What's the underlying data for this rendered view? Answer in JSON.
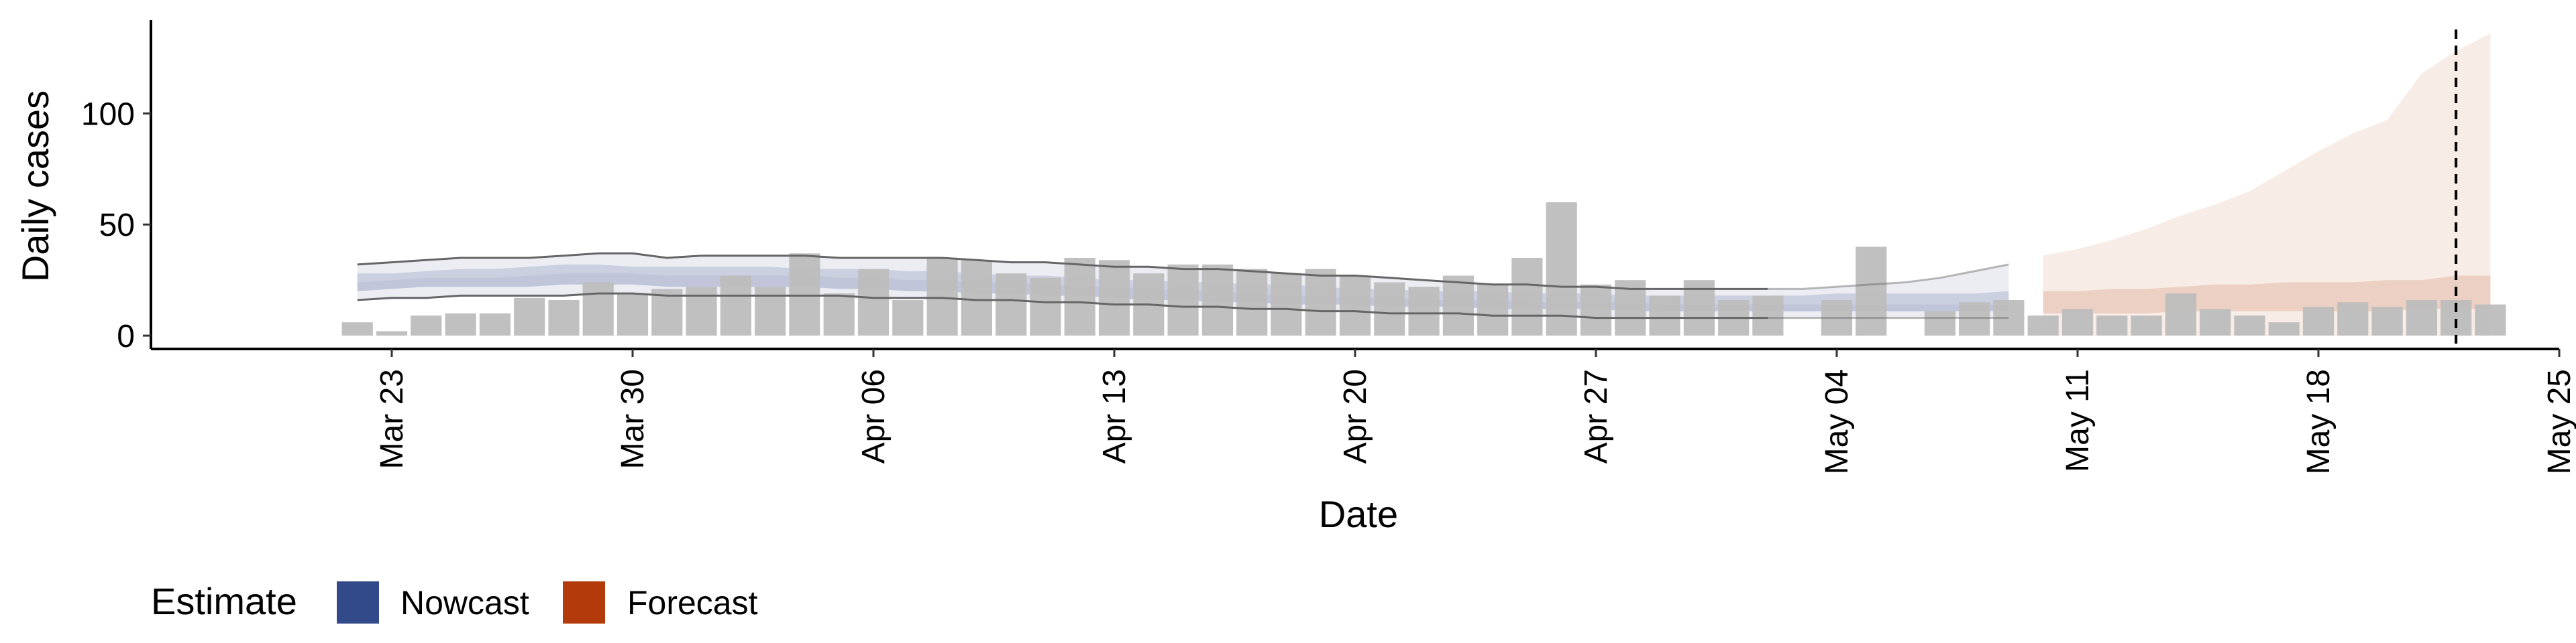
{
  "chart_data": {
    "type": "bar",
    "xlabel": "Date",
    "ylabel": "Daily cases",
    "xlim": [
      "2020-03-16",
      "2020-05-25"
    ],
    "ylim": [
      -6,
      142
    ],
    "x_ticks": [
      {
        "date": "2020-03-23",
        "label": "Mar 23"
      },
      {
        "date": "2020-03-30",
        "label": "Mar 30"
      },
      {
        "date": "2020-04-06",
        "label": "Apr 06"
      },
      {
        "date": "2020-04-13",
        "label": "Apr 13"
      },
      {
        "date": "2020-04-20",
        "label": "Apr 20"
      },
      {
        "date": "2020-04-27",
        "label": "Apr 27"
      },
      {
        "date": "2020-05-04",
        "label": "May 04"
      },
      {
        "date": "2020-05-11",
        "label": "May 11"
      },
      {
        "date": "2020-05-18",
        "label": "May 18"
      },
      {
        "date": "2020-05-25",
        "label": "May 25"
      }
    ],
    "y_ticks": [
      {
        "value": 0,
        "label": "0"
      },
      {
        "value": 50,
        "label": "50"
      },
      {
        "value": 100,
        "label": "100"
      }
    ],
    "reported_cases": {
      "start_date": "2020-03-22",
      "values": [
        6,
        2,
        9,
        10,
        10,
        17,
        16,
        24,
        19,
        21,
        22,
        27,
        22,
        37,
        19,
        30,
        16,
        35,
        34,
        28,
        26,
        35,
        34,
        28,
        32,
        32,
        30,
        28,
        30,
        27,
        24,
        22,
        27,
        23,
        35,
        60,
        23,
        25,
        18,
        25,
        16,
        18,
        0,
        16,
        40,
        0,
        11,
        15,
        16,
        9,
        12,
        9,
        9,
        19,
        12,
        9,
        6,
        13,
        15,
        13,
        16,
        16,
        14
      ]
    },
    "nowcast": {
      "start_date": "2020-03-22",
      "median": [
        24,
        25,
        26,
        26,
        26,
        27,
        28,
        28,
        28,
        27,
        27,
        27,
        27,
        27,
        26,
        26,
        25,
        25,
        24,
        24,
        23,
        22,
        22,
        21,
        20,
        20,
        19,
        18,
        18,
        17,
        17,
        16,
        16,
        16,
        15,
        15,
        15,
        15,
        14,
        14,
        14,
        14,
        14,
        14,
        14,
        14,
        14,
        14,
        14
      ],
      "lower50": [
        20,
        21,
        22,
        22,
        22,
        22,
        23,
        23,
        23,
        22,
        22,
        22,
        22,
        22,
        21,
        21,
        20,
        20,
        19,
        19,
        18,
        18,
        17,
        16,
        16,
        15,
        15,
        14,
        14,
        14,
        13,
        13,
        13,
        12,
        12,
        12,
        12,
        11,
        11,
        11,
        11,
        11,
        11,
        11,
        11,
        11,
        11,
        11,
        11
      ],
      "upper50": [
        28,
        28,
        29,
        30,
        30,
        31,
        32,
        32,
        31,
        31,
        31,
        31,
        31,
        30,
        30,
        30,
        29,
        29,
        28,
        27,
        27,
        26,
        25,
        25,
        24,
        24,
        23,
        23,
        22,
        21,
        21,
        20,
        20,
        20,
        19,
        19,
        19,
        18,
        18,
        18,
        18,
        18,
        18,
        19,
        19,
        19,
        19,
        19,
        20
      ],
      "lower90": [
        16,
        17,
        17,
        18,
        18,
        18,
        18,
        19,
        19,
        18,
        18,
        18,
        18,
        18,
        18,
        17,
        17,
        17,
        16,
        16,
        15,
        15,
        14,
        14,
        13,
        13,
        12,
        12,
        11,
        11,
        10,
        10,
        10,
        9,
        9,
        9,
        8,
        8,
        8,
        8,
        8,
        8,
        8,
        8,
        8,
        8,
        8,
        8,
        8
      ],
      "upper90": [
        32,
        33,
        34,
        35,
        35,
        35,
        36,
        37,
        37,
        35,
        36,
        36,
        36,
        36,
        35,
        35,
        35,
        35,
        34,
        33,
        33,
        32,
        31,
        31,
        30,
        30,
        29,
        28,
        27,
        27,
        26,
        25,
        24,
        23,
        23,
        22,
        22,
        21,
        21,
        21,
        21,
        21,
        21,
        22,
        23,
        24,
        26,
        29,
        32
      ]
    },
    "forecast": {
      "start_date": "2020-05-10",
      "lower50": [
        10,
        10,
        10,
        10,
        11,
        11,
        11,
        11,
        11,
        11,
        11,
        12,
        12,
        12
      ],
      "upper50": [
        20,
        20,
        21,
        21,
        22,
        23,
        23,
        24,
        24,
        24,
        25,
        25,
        27,
        27
      ],
      "upper90": [
        36,
        39,
        43,
        48,
        54,
        59,
        65,
        74,
        83,
        91,
        97,
        118,
        128,
        136
      ]
    },
    "dashed_vline_date": "2020-05-22",
    "colors": {
      "bars": "#bdbdbd",
      "nowcast": "#3b4f8c",
      "forecast": "#b5400e",
      "ribbon_lines": "#666666"
    },
    "legend": {
      "title": "Estimate",
      "position": "bottom-left",
      "items": [
        {
          "label": "Nowcast",
          "color": "#334a8a"
        },
        {
          "label": "Forecast",
          "color": "#b33a0a"
        }
      ]
    },
    "grid": false
  }
}
